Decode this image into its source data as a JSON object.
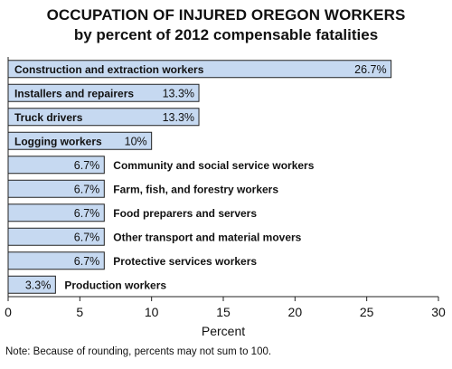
{
  "chart_data": {
    "type": "bar",
    "orientation": "horizontal",
    "title": "OCCUPATION OF INJURED OREGON WORKERS",
    "subtitle": "by percent of 2012 compensable fatalities",
    "xlabel": "Percent",
    "ylabel": "",
    "xlim": [
      0,
      30
    ],
    "xticks": [
      0,
      5,
      10,
      15,
      20,
      25,
      30
    ],
    "grid": false,
    "bar_color": "#c6d9f1",
    "bar_edge_color": "#222222",
    "categories": [
      "Construction and extraction workers",
      "Installers and repairers",
      "Truck drivers",
      "Logging workers",
      "Community and social service workers",
      "Farm, fish, and forestry workers",
      "Food preparers and servers",
      "Other transport and material movers",
      "Protective services workers",
      "Production workers"
    ],
    "values": [
      26.7,
      13.3,
      13.3,
      10,
      6.7,
      6.7,
      6.7,
      6.7,
      6.7,
      3.3
    ],
    "value_labels": [
      "26.7%",
      "13.3%",
      "13.3%",
      "10%",
      "6.7%",
      "6.7%",
      "6.7%",
      "6.7%",
      "6.7%",
      "3.3%"
    ]
  },
  "note": "Note: Because of rounding, percents may not sum to 100."
}
